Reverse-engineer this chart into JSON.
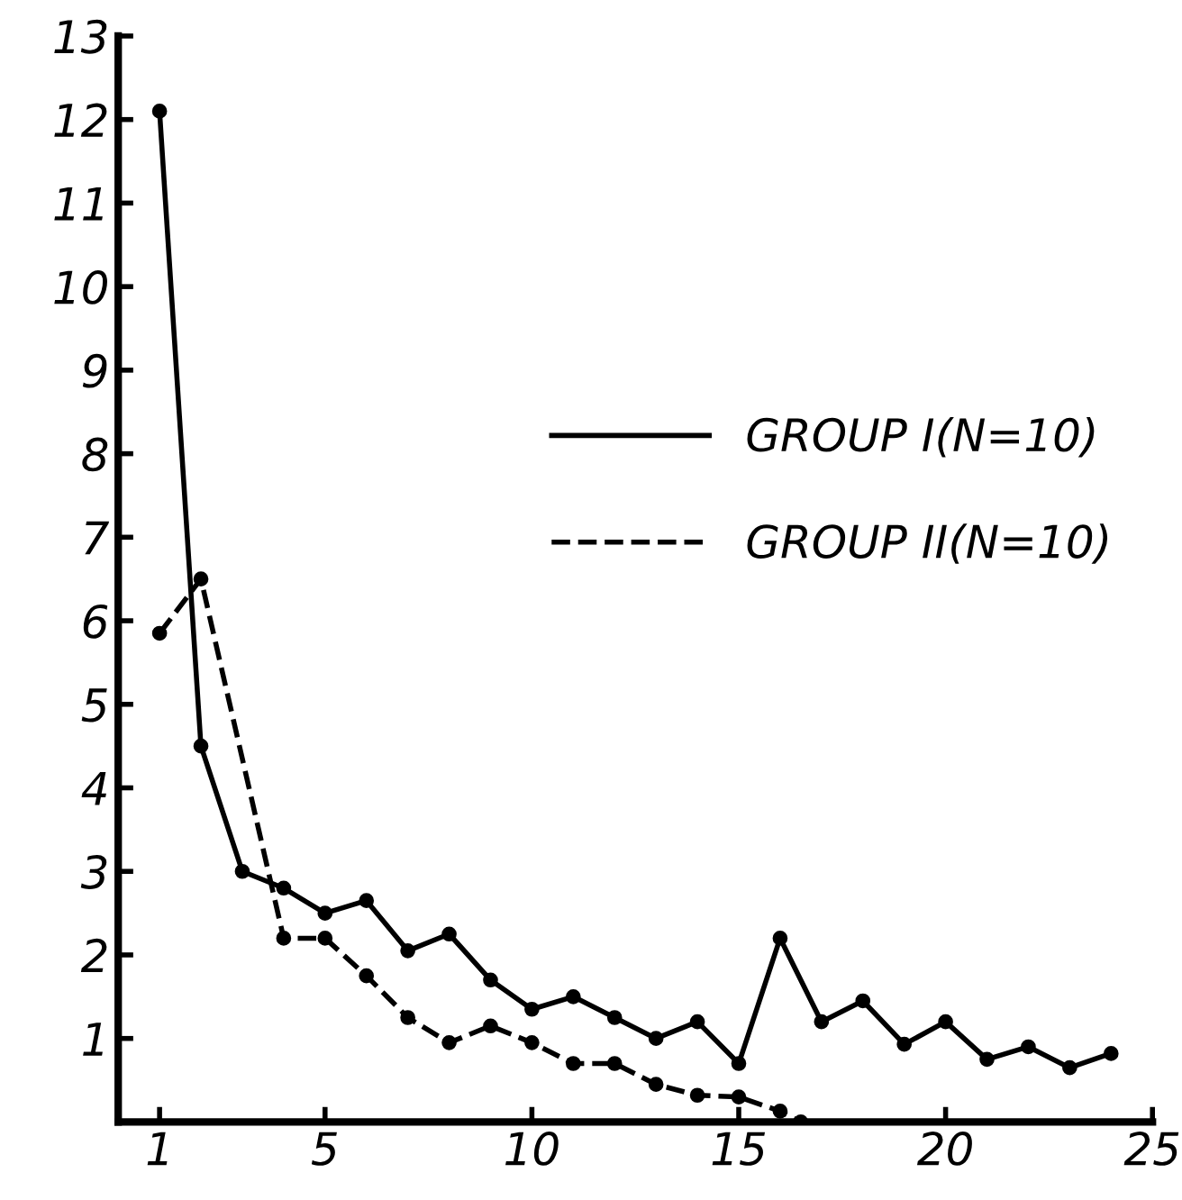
{
  "chart_data": {
    "type": "line",
    "xlim": [
      0,
      25
    ],
    "ylim": [
      0,
      13
    ],
    "xticks": [
      1,
      5,
      10,
      15,
      20,
      25
    ],
    "yticks": [
      1,
      2,
      3,
      4,
      5,
      6,
      7,
      8,
      9,
      10,
      11,
      12,
      13
    ],
    "grid": false,
    "legend": "right",
    "marker": "circle",
    "series": [
      {
        "name": "GROUP I(N=10)",
        "color": "#000000",
        "line_style": "solid",
        "x": [
          1,
          2,
          3,
          4,
          5,
          6,
          7,
          8,
          9,
          10,
          11,
          12,
          13,
          14,
          15,
          16,
          17,
          18,
          19,
          20,
          21,
          22,
          23,
          24
        ],
        "values": [
          12.1,
          4.5,
          3.0,
          2.8,
          2.5,
          2.65,
          2.05,
          2.25,
          1.7,
          1.35,
          1.5,
          1.25,
          1.0,
          1.2,
          0.7,
          2.2,
          1.2,
          1.45,
          0.93,
          1.2,
          0.75,
          0.9,
          0.65,
          0.82
        ]
      },
      {
        "name": "GROUP II(N=10)",
        "color": "#000000",
        "line_style": "dashed",
        "x": [
          1,
          2,
          4,
          5,
          6,
          7,
          8,
          9,
          10,
          11,
          12,
          13,
          14,
          15,
          16,
          16.5
        ],
        "values": [
          5.85,
          6.5,
          2.2,
          2.2,
          1.75,
          1.25,
          0.95,
          1.15,
          0.95,
          0.7,
          0.7,
          0.45,
          0.32,
          0.3,
          0.13,
          0
        ]
      }
    ]
  }
}
